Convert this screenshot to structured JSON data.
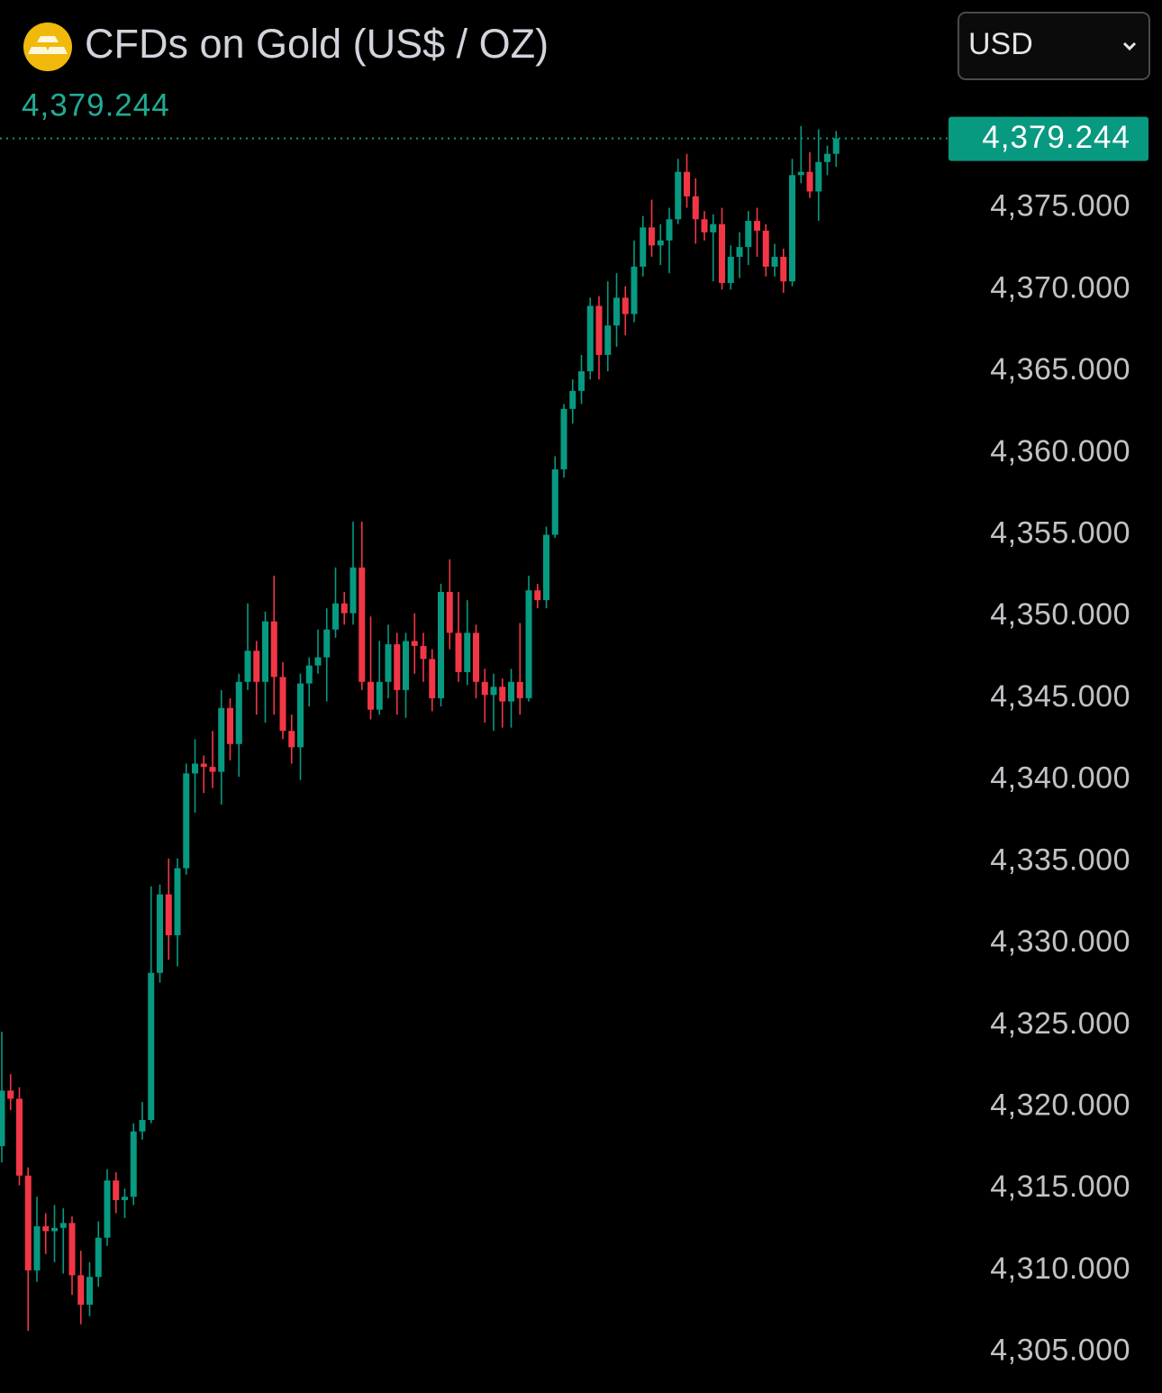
{
  "chart_data": {
    "type": "candlestick",
    "title": "CFDs on Gold (US$ / OZ)",
    "currency": "USD",
    "last_price": 4379.244,
    "last_price_label": "4,379.244",
    "up_color": "#089981",
    "down_color": "#f23645",
    "ylim": [
      4302.5,
      4382.2
    ],
    "yticks": [
      {
        "value": 4305,
        "label": "4,305.000"
      },
      {
        "value": 4310,
        "label": "4,310.000"
      },
      {
        "value": 4315,
        "label": "4,315.000"
      },
      {
        "value": 4320,
        "label": "4,320.000"
      },
      {
        "value": 4325,
        "label": "4,325.000"
      },
      {
        "value": 4330,
        "label": "4,330.000"
      },
      {
        "value": 4335,
        "label": "4,335.000"
      },
      {
        "value": 4340,
        "label": "4,340.000"
      },
      {
        "value": 4345,
        "label": "4,345.000"
      },
      {
        "value": 4350,
        "label": "4,350.000"
      },
      {
        "value": 4355,
        "label": "4,355.000"
      },
      {
        "value": 4360,
        "label": "4,360.000"
      },
      {
        "value": 4365,
        "label": "4,365.000"
      },
      {
        "value": 4370,
        "label": "4,370.000"
      },
      {
        "value": 4375,
        "label": "4,375.000"
      }
    ],
    "open": [
      4317.6,
      4321.0,
      4320.5,
      4315.8,
      4310.0,
      4312.7,
      4312.4,
      4312.6,
      4312.9,
      4309.7,
      4307.9,
      4309.6,
      4312.0,
      4315.5,
      4314.3,
      4314.5,
      4318.5,
      4319.2,
      4328.2,
      4333.0,
      4330.5,
      4334.6,
      4340.4,
      4341.0,
      4340.8,
      4340.5,
      4344.4,
      4342.2,
      4346.0,
      4347.9,
      4346.0,
      4349.7,
      4346.3,
      4343.0,
      4342.0,
      4345.9,
      4347.0,
      4347.5,
      4349.2,
      4350.8,
      4350.2,
      4353.0,
      4346.0,
      4344.3,
      4346.0,
      4348.3,
      4345.5,
      4348.5,
      4348.2,
      4347.4,
      4345.0,
      4351.5,
      4349.0,
      4346.6,
      4349.0,
      4346.0,
      4345.2,
      4345.7,
      4344.8,
      4346.0,
      4345.0,
      4351.6,
      4351.0,
      4355.0,
      4359.0,
      4362.7,
      4363.8,
      4365.0,
      4369.0,
      4366.0,
      4367.8,
      4369.5,
      4368.5,
      4371.4,
      4373.8,
      4372.7,
      4373.0,
      4374.3,
      4377.2,
      4375.7,
      4374.3,
      4373.5,
      4374.0,
      4370.4,
      4372.0,
      4372.6,
      4374.2,
      4373.6,
      4371.4,
      4372.0,
      4370.5,
      4377.0,
      4377.2,
      4376.0,
      4377.8,
      4378.3
    ],
    "high": [
      4324.6,
      4322.0,
      4321.2,
      4316.3,
      4314.5,
      4313.5,
      4314.0,
      4313.8,
      4313.3,
      4311.2,
      4310.5,
      4313.0,
      4316.2,
      4316.0,
      4315.0,
      4319.0,
      4320.3,
      4333.5,
      4333.6,
      4335.2,
      4335.2,
      4341.0,
      4342.5,
      4341.5,
      4343.0,
      4345.5,
      4345.0,
      4346.5,
      4350.8,
      4348.5,
      4350.3,
      4352.5,
      4347.2,
      4344.0,
      4346.5,
      4347.5,
      4349.2,
      4350.5,
      4353.0,
      4351.5,
      4355.8,
      4355.8,
      4350.0,
      4348.5,
      4349.5,
      4349.0,
      4349.0,
      4350.2,
      4349.0,
      4348.0,
      4352.0,
      4353.5,
      4351.5,
      4351.0,
      4349.5,
      4346.8,
      4346.5,
      4346.2,
      4346.8,
      4349.6,
      4352.5,
      4352.0,
      4355.5,
      4359.8,
      4363.0,
      4364.5,
      4366.0,
      4369.5,
      4369.6,
      4370.5,
      4371.0,
      4370.2,
      4373.0,
      4374.5,
      4375.5,
      4374.0,
      4375.0,
      4378.0,
      4378.3,
      4376.8,
      4374.8,
      4374.6,
      4375.0,
      4372.7,
      4373.5,
      4374.8,
      4375.0,
      4374.0,
      4372.8,
      4372.5,
      4378.0,
      4380.0,
      4378.4,
      4379.8,
      4378.8,
      4379.7
    ],
    "low": [
      4316.6,
      4319.8,
      4315.2,
      4306.3,
      4309.3,
      4311.0,
      4310.5,
      4309.8,
      4308.5,
      4306.7,
      4307.2,
      4309.0,
      4311.5,
      4313.5,
      4313.2,
      4314.0,
      4318.0,
      4319.0,
      4327.6,
      4329.0,
      4328.6,
      4334.2,
      4338.0,
      4339.2,
      4339.5,
      4338.5,
      4341.2,
      4340.2,
      4345.5,
      4344.0,
      4343.5,
      4344.0,
      4342.5,
      4341.0,
      4340.0,
      4344.5,
      4346.5,
      4344.8,
      4348.7,
      4349.5,
      4349.5,
      4345.5,
      4343.7,
      4344.0,
      4345.0,
      4344.0,
      4343.8,
      4346.5,
      4346.0,
      4344.2,
      4344.5,
      4348.0,
      4346.0,
      4345.8,
      4345.0,
      4343.5,
      4343.0,
      4343.2,
      4343.2,
      4344.0,
      4344.8,
      4350.5,
      4350.5,
      4354.8,
      4358.5,
      4361.8,
      4363.0,
      4364.5,
      4364.5,
      4365.0,
      4366.5,
      4367.2,
      4368.0,
      4370.8,
      4372.0,
      4371.5,
      4371.0,
      4374.0,
      4375.0,
      4372.8,
      4373.0,
      4370.5,
      4370.0,
      4370.0,
      4370.7,
      4371.5,
      4372.0,
      4370.8,
      4370.8,
      4369.8,
      4370.2,
      4376.5,
      4375.6,
      4374.2,
      4377.0,
      4377.5
    ],
    "close": [
      4321.0,
      4320.5,
      4315.8,
      4310.0,
      4312.7,
      4312.4,
      4312.6,
      4312.9,
      4309.7,
      4307.9,
      4309.6,
      4312.0,
      4315.5,
      4314.3,
      4314.5,
      4318.5,
      4319.2,
      4328.2,
      4333.0,
      4330.5,
      4334.6,
      4340.4,
      4341.0,
      4340.8,
      4340.5,
      4344.4,
      4342.2,
      4346.0,
      4347.9,
      4346.0,
      4349.7,
      4346.3,
      4343.0,
      4342.0,
      4345.9,
      4347.0,
      4347.5,
      4349.2,
      4350.8,
      4350.2,
      4353.0,
      4346.0,
      4344.3,
      4346.0,
      4348.3,
      4345.5,
      4348.5,
      4348.2,
      4347.4,
      4345.0,
      4351.5,
      4349.0,
      4346.6,
      4349.0,
      4346.0,
      4345.2,
      4345.7,
      4344.8,
      4346.0,
      4345.0,
      4351.6,
      4351.0,
      4355.0,
      4359.0,
      4362.7,
      4363.8,
      4365.0,
      4369.0,
      4366.0,
      4367.8,
      4369.5,
      4368.5,
      4371.4,
      4373.8,
      4372.7,
      4373.0,
      4374.3,
      4377.2,
      4375.7,
      4374.3,
      4373.5,
      4374.0,
      4370.4,
      4372.0,
      4372.6,
      4374.2,
      4373.6,
      4371.4,
      4372.0,
      4370.5,
      4377.0,
      4377.2,
      4376.0,
      4377.8,
      4378.3,
      4379.244
    ]
  }
}
